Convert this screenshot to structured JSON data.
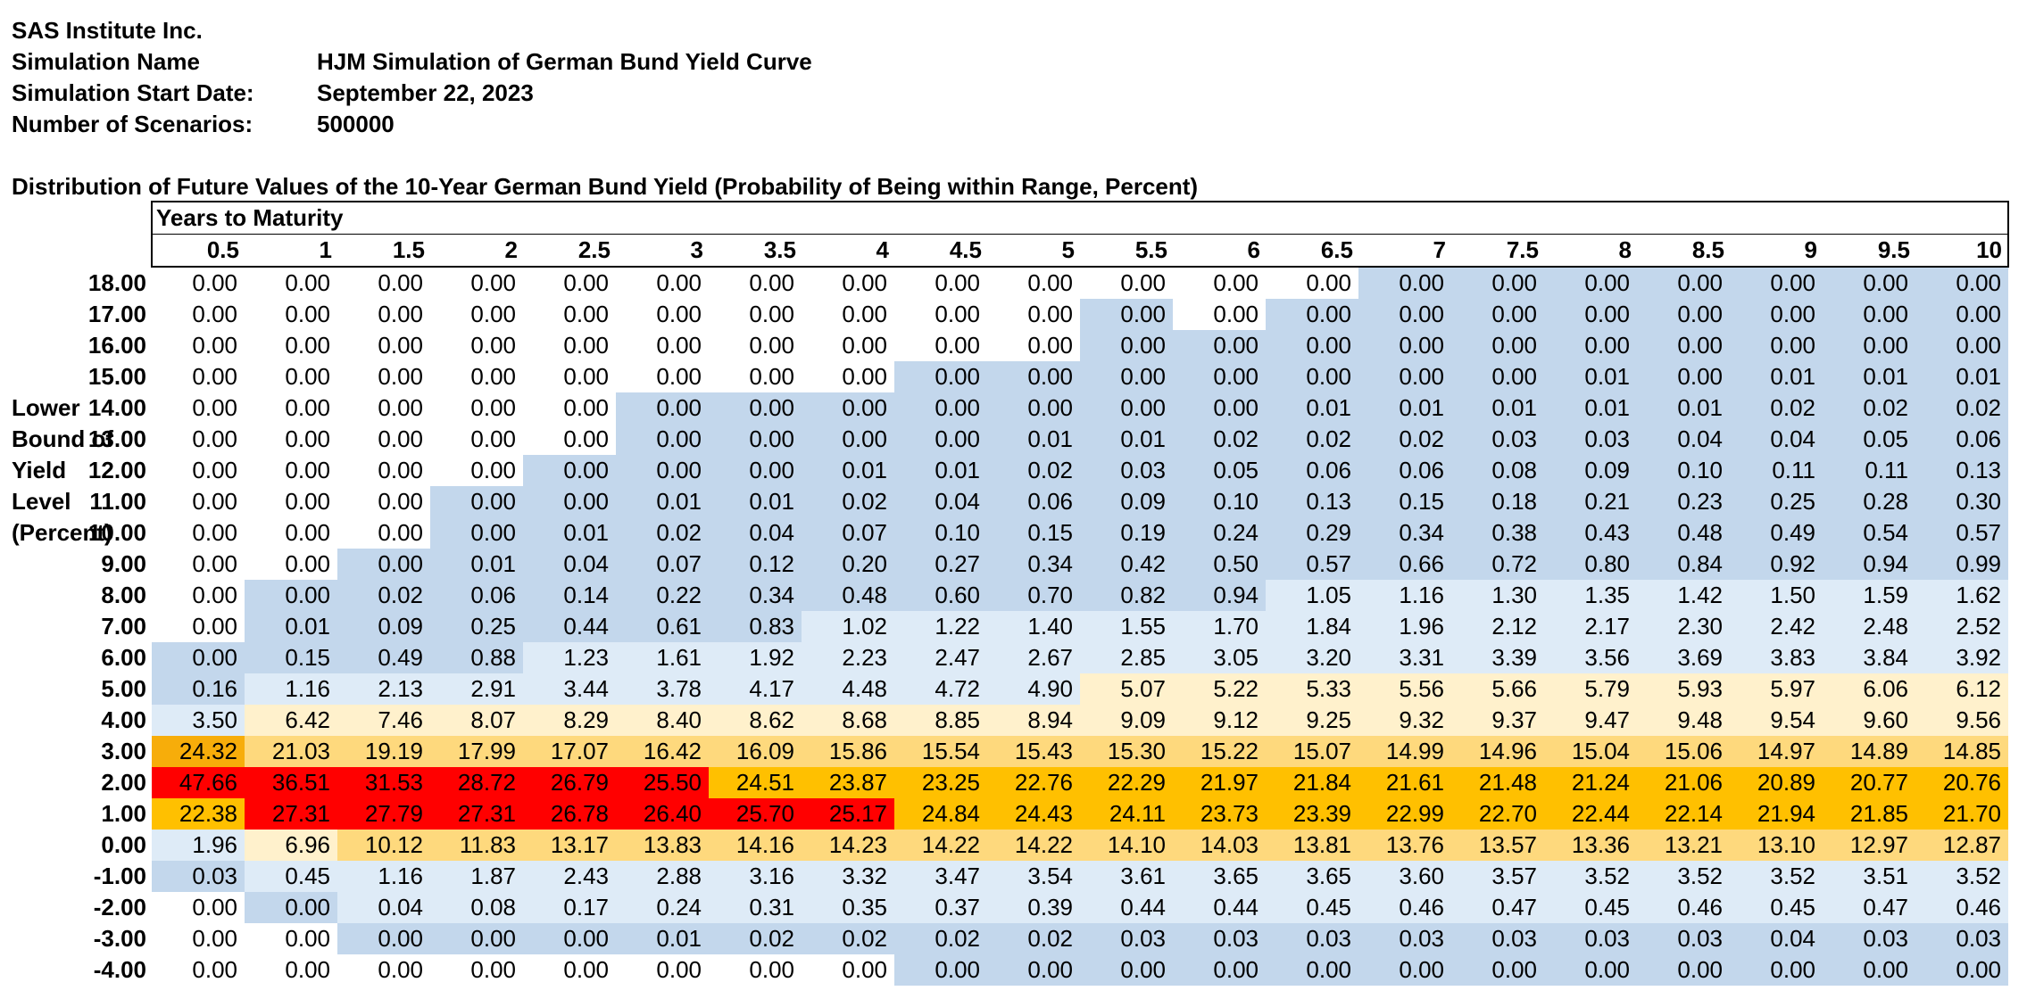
{
  "header": {
    "company": "SAS Institute Inc.",
    "simulation_name_label": "Simulation Name",
    "simulation_name": "HJM Simulation of German Bund Yield Curve",
    "start_date_label": "Simulation Start Date:",
    "start_date": "September 22, 2023",
    "scenarios_label": "Number of Scenarios:",
    "scenarios": "500000"
  },
  "caption": "Distribution of Future Values of the 10-Year German Bund Yield (Probability of Being within Range, Percent)",
  "side_label": [
    "Lower",
    "Bound of",
    "Yield",
    "Level",
    "(Percent)"
  ],
  "table": {
    "years_label": "Years to Maturity",
    "columns": [
      "0.5",
      "1",
      "1.5",
      "2",
      "2.5",
      "3",
      "3.5",
      "4",
      "4.5",
      "5",
      "5.5",
      "6",
      "6.5",
      "7",
      "7.5",
      "8",
      "8.5",
      "9",
      "9.5",
      "10"
    ],
    "rows": [
      {
        "label": "18.00",
        "values": [
          "0.00",
          "0.00",
          "0.00",
          "0.00",
          "0.00",
          "0.00",
          "0.00",
          "0.00",
          "0.00",
          "0.00",
          "0.00",
          "0.00",
          "0.00",
          "0.00",
          "0.00",
          "0.00",
          "0.00",
          "0.00",
          "0.00",
          "0.00"
        ]
      },
      {
        "label": "17.00",
        "values": [
          "0.00",
          "0.00",
          "0.00",
          "0.00",
          "0.00",
          "0.00",
          "0.00",
          "0.00",
          "0.00",
          "0.00",
          "0.00",
          "0.00",
          "0.00",
          "0.00",
          "0.00",
          "0.00",
          "0.00",
          "0.00",
          "0.00",
          "0.00"
        ]
      },
      {
        "label": "16.00",
        "values": [
          "0.00",
          "0.00",
          "0.00",
          "0.00",
          "0.00",
          "0.00",
          "0.00",
          "0.00",
          "0.00",
          "0.00",
          "0.00",
          "0.00",
          "0.00",
          "0.00",
          "0.00",
          "0.00",
          "0.00",
          "0.00",
          "0.00",
          "0.00"
        ]
      },
      {
        "label": "15.00",
        "values": [
          "0.00",
          "0.00",
          "0.00",
          "0.00",
          "0.00",
          "0.00",
          "0.00",
          "0.00",
          "0.00",
          "0.00",
          "0.00",
          "0.00",
          "0.00",
          "0.00",
          "0.00",
          "0.01",
          "0.00",
          "0.01",
          "0.01",
          "0.01"
        ]
      },
      {
        "label": "14.00",
        "values": [
          "0.00",
          "0.00",
          "0.00",
          "0.00",
          "0.00",
          "0.00",
          "0.00",
          "0.00",
          "0.00",
          "0.00",
          "0.00",
          "0.00",
          "0.01",
          "0.01",
          "0.01",
          "0.01",
          "0.01",
          "0.02",
          "0.02",
          "0.02"
        ]
      },
      {
        "label": "13.00",
        "values": [
          "0.00",
          "0.00",
          "0.00",
          "0.00",
          "0.00",
          "0.00",
          "0.00",
          "0.00",
          "0.00",
          "0.01",
          "0.01",
          "0.02",
          "0.02",
          "0.02",
          "0.03",
          "0.03",
          "0.04",
          "0.04",
          "0.05",
          "0.06"
        ]
      },
      {
        "label": "12.00",
        "values": [
          "0.00",
          "0.00",
          "0.00",
          "0.00",
          "0.00",
          "0.00",
          "0.00",
          "0.01",
          "0.01",
          "0.02",
          "0.03",
          "0.05",
          "0.06",
          "0.06",
          "0.08",
          "0.09",
          "0.10",
          "0.11",
          "0.11",
          "0.13"
        ]
      },
      {
        "label": "11.00",
        "values": [
          "0.00",
          "0.00",
          "0.00",
          "0.00",
          "0.00",
          "0.01",
          "0.01",
          "0.02",
          "0.04",
          "0.06",
          "0.09",
          "0.10",
          "0.13",
          "0.15",
          "0.18",
          "0.21",
          "0.23",
          "0.25",
          "0.28",
          "0.30"
        ]
      },
      {
        "label": "10.00",
        "values": [
          "0.00",
          "0.00",
          "0.00",
          "0.00",
          "0.01",
          "0.02",
          "0.04",
          "0.07",
          "0.10",
          "0.15",
          "0.19",
          "0.24",
          "0.29",
          "0.34",
          "0.38",
          "0.43",
          "0.48",
          "0.49",
          "0.54",
          "0.57"
        ]
      },
      {
        "label": "9.00",
        "values": [
          "0.00",
          "0.00",
          "0.00",
          "0.01",
          "0.04",
          "0.07",
          "0.12",
          "0.20",
          "0.27",
          "0.34",
          "0.42",
          "0.50",
          "0.57",
          "0.66",
          "0.72",
          "0.80",
          "0.84",
          "0.92",
          "0.94",
          "0.99"
        ]
      },
      {
        "label": "8.00",
        "values": [
          "0.00",
          "0.00",
          "0.02",
          "0.06",
          "0.14",
          "0.22",
          "0.34",
          "0.48",
          "0.60",
          "0.70",
          "0.82",
          "0.94",
          "1.05",
          "1.16",
          "1.30",
          "1.35",
          "1.42",
          "1.50",
          "1.59",
          "1.62"
        ]
      },
      {
        "label": "7.00",
        "values": [
          "0.00",
          "0.01",
          "0.09",
          "0.25",
          "0.44",
          "0.61",
          "0.83",
          "1.02",
          "1.22",
          "1.40",
          "1.55",
          "1.70",
          "1.84",
          "1.96",
          "2.12",
          "2.17",
          "2.30",
          "2.42",
          "2.48",
          "2.52"
        ]
      },
      {
        "label": "6.00",
        "values": [
          "0.00",
          "0.15",
          "0.49",
          "0.88",
          "1.23",
          "1.61",
          "1.92",
          "2.23",
          "2.47",
          "2.67",
          "2.85",
          "3.05",
          "3.20",
          "3.31",
          "3.39",
          "3.56",
          "3.69",
          "3.83",
          "3.84",
          "3.92"
        ]
      },
      {
        "label": "5.00",
        "values": [
          "0.16",
          "1.16",
          "2.13",
          "2.91",
          "3.44",
          "3.78",
          "4.17",
          "4.48",
          "4.72",
          "4.90",
          "5.07",
          "5.22",
          "5.33",
          "5.56",
          "5.66",
          "5.79",
          "5.93",
          "5.97",
          "6.06",
          "6.12"
        ]
      },
      {
        "label": "4.00",
        "values": [
          "3.50",
          "6.42",
          "7.46",
          "8.07",
          "8.29",
          "8.40",
          "8.62",
          "8.68",
          "8.85",
          "8.94",
          "9.09",
          "9.12",
          "9.25",
          "9.32",
          "9.37",
          "9.47",
          "9.48",
          "9.54",
          "9.60",
          "9.56"
        ]
      },
      {
        "label": "3.00",
        "values": [
          "24.32",
          "21.03",
          "19.19",
          "17.99",
          "17.07",
          "16.42",
          "16.09",
          "15.86",
          "15.54",
          "15.43",
          "15.30",
          "15.22",
          "15.07",
          "14.99",
          "14.96",
          "15.04",
          "15.06",
          "14.97",
          "14.89",
          "14.85"
        ]
      },
      {
        "label": "2.00",
        "values": [
          "47.66",
          "36.51",
          "31.53",
          "28.72",
          "26.79",
          "25.50",
          "24.51",
          "23.87",
          "23.25",
          "22.76",
          "22.29",
          "21.97",
          "21.84",
          "21.61",
          "21.48",
          "21.24",
          "21.06",
          "20.89",
          "20.77",
          "20.76"
        ]
      },
      {
        "label": "1.00",
        "values": [
          "22.38",
          "27.31",
          "27.79",
          "27.31",
          "26.78",
          "26.40",
          "25.70",
          "25.17",
          "24.84",
          "24.43",
          "24.11",
          "23.73",
          "23.39",
          "22.99",
          "22.70",
          "22.44",
          "22.14",
          "21.94",
          "21.85",
          "21.70"
        ]
      },
      {
        "label": "0.00",
        "values": [
          "1.96",
          "6.96",
          "10.12",
          "11.83",
          "13.17",
          "13.83",
          "14.16",
          "14.23",
          "14.22",
          "14.22",
          "14.10",
          "14.03",
          "13.81",
          "13.76",
          "13.57",
          "13.36",
          "13.21",
          "13.10",
          "12.97",
          "12.87"
        ]
      },
      {
        "label": "-1.00",
        "values": [
          "0.03",
          "0.45",
          "1.16",
          "1.87",
          "2.43",
          "2.88",
          "3.16",
          "3.32",
          "3.47",
          "3.54",
          "3.61",
          "3.65",
          "3.65",
          "3.60",
          "3.57",
          "3.52",
          "3.52",
          "3.52",
          "3.51",
          "3.52"
        ]
      },
      {
        "label": "-2.00",
        "values": [
          "0.00",
          "0.00",
          "0.04",
          "0.08",
          "0.17",
          "0.24",
          "0.31",
          "0.35",
          "0.37",
          "0.39",
          "0.44",
          "0.44",
          "0.45",
          "0.46",
          "0.47",
          "0.45",
          "0.46",
          "0.45",
          "0.47",
          "0.46"
        ]
      },
      {
        "label": "-3.00",
        "values": [
          "0.00",
          "0.00",
          "0.00",
          "0.00",
          "0.00",
          "0.01",
          "0.02",
          "0.02",
          "0.02",
          "0.02",
          "0.03",
          "0.03",
          "0.03",
          "0.03",
          "0.03",
          "0.03",
          "0.03",
          "0.04",
          "0.03",
          "0.03"
        ]
      },
      {
        "label": "-4.00",
        "values": [
          "0.00",
          "0.00",
          "0.00",
          "0.00",
          "0.00",
          "0.00",
          "0.00",
          "0.00",
          "0.00",
          "0.00",
          "0.00",
          "0.00",
          "0.00",
          "0.00",
          "0.00",
          "0.00",
          "0.00",
          "0.00",
          "0.00",
          "0.00"
        ]
      }
    ],
    "fills": [
      [
        "w",
        "w",
        "w",
        "w",
        "w",
        "w",
        "w",
        "w",
        "w",
        "w",
        "w",
        "w",
        "w",
        "b",
        "b",
        "b",
        "b",
        "b",
        "b",
        "b"
      ],
      [
        "w",
        "w",
        "w",
        "w",
        "w",
        "w",
        "w",
        "w",
        "w",
        "w",
        "b",
        "w",
        "b",
        "b",
        "b",
        "b",
        "b",
        "b",
        "b",
        "b"
      ],
      [
        "w",
        "w",
        "w",
        "w",
        "w",
        "w",
        "w",
        "w",
        "w",
        "w",
        "b",
        "b",
        "b",
        "b",
        "b",
        "b",
        "b",
        "b",
        "b",
        "b"
      ],
      [
        "w",
        "w",
        "w",
        "w",
        "w",
        "w",
        "w",
        "w",
        "b",
        "b",
        "b",
        "b",
        "b",
        "b",
        "b",
        "b",
        "b",
        "b",
        "b",
        "b"
      ],
      [
        "w",
        "w",
        "w",
        "w",
        "w",
        "b",
        "b",
        "b",
        "b",
        "b",
        "b",
        "b",
        "b",
        "b",
        "b",
        "b",
        "b",
        "b",
        "b",
        "b"
      ],
      [
        "w",
        "w",
        "w",
        "w",
        "w",
        "b",
        "b",
        "b",
        "b",
        "b",
        "b",
        "b",
        "b",
        "b",
        "b",
        "b",
        "b",
        "b",
        "b",
        "b"
      ],
      [
        "w",
        "w",
        "w",
        "w",
        "b",
        "b",
        "b",
        "b",
        "b",
        "b",
        "b",
        "b",
        "b",
        "b",
        "b",
        "b",
        "b",
        "b",
        "b",
        "b"
      ],
      [
        "w",
        "w",
        "w",
        "b",
        "b",
        "b",
        "b",
        "b",
        "b",
        "b",
        "b",
        "b",
        "b",
        "b",
        "b",
        "b",
        "b",
        "b",
        "b",
        "b"
      ],
      [
        "w",
        "w",
        "w",
        "b",
        "b",
        "b",
        "b",
        "b",
        "b",
        "b",
        "b",
        "b",
        "b",
        "b",
        "b",
        "b",
        "b",
        "b",
        "b",
        "b"
      ],
      [
        "w",
        "w",
        "b",
        "b",
        "b",
        "b",
        "b",
        "b",
        "b",
        "b",
        "b",
        "b",
        "b",
        "b",
        "b",
        "b",
        "b",
        "b",
        "b",
        "b"
      ],
      [
        "w",
        "b",
        "b",
        "b",
        "b",
        "b",
        "b",
        "b",
        "b",
        "b",
        "b",
        "b",
        "lb",
        "lb",
        "lb",
        "lb",
        "lb",
        "lb",
        "lb",
        "lb"
      ],
      [
        "w",
        "b",
        "b",
        "b",
        "b",
        "b",
        "b",
        "lb",
        "lb",
        "lb",
        "lb",
        "lb",
        "lb",
        "lb",
        "lb",
        "lb",
        "lb",
        "lb",
        "lb",
        "lb"
      ],
      [
        "b",
        "b",
        "b",
        "b",
        "lb",
        "lb",
        "lb",
        "lb",
        "lb",
        "lb",
        "lb",
        "lb",
        "lb",
        "lb",
        "lb",
        "lb",
        "lb",
        "lb",
        "lb",
        "lb"
      ],
      [
        "b",
        "lb",
        "lb",
        "lb",
        "lb",
        "lb",
        "lb",
        "lb",
        "lb",
        "lb",
        "cr",
        "cr",
        "cr",
        "cr",
        "cr",
        "cr",
        "cr",
        "cr",
        "cr",
        "cr"
      ],
      [
        "lb",
        "cr",
        "cr",
        "cr",
        "cr",
        "cr",
        "cr",
        "cr",
        "cr",
        "cr",
        "cr",
        "cr",
        "cr",
        "cr",
        "cr",
        "cr",
        "cr",
        "cr",
        "cr",
        "cr"
      ],
      [
        "or",
        "ly",
        "ly",
        "ly",
        "ly",
        "ly",
        "ly",
        "ly",
        "ly",
        "ly",
        "ly",
        "ly",
        "ly",
        "ly",
        "ly",
        "ly",
        "ly",
        "ly",
        "ly",
        "ly"
      ],
      [
        "rd",
        "rd",
        "rd",
        "rd",
        "rd",
        "rd",
        "yo",
        "yo",
        "yo",
        "yo",
        "yo",
        "yo",
        "yo",
        "yo",
        "yo",
        "yo",
        "yo",
        "yo",
        "yo",
        "yo"
      ],
      [
        "yo",
        "rd",
        "rd",
        "rd",
        "rd",
        "rd",
        "rd",
        "rd",
        "yo",
        "yo",
        "yo",
        "yo",
        "yo",
        "yo",
        "yo",
        "yo",
        "yo",
        "yo",
        "yo",
        "yo"
      ],
      [
        "lb",
        "cr",
        "ly",
        "ly",
        "ly",
        "ly",
        "ly",
        "ly",
        "ly",
        "ly",
        "ly",
        "ly",
        "ly",
        "ly",
        "ly",
        "ly",
        "ly",
        "ly",
        "ly",
        "ly"
      ],
      [
        "b",
        "lb",
        "lb",
        "lb",
        "lb",
        "lb",
        "lb",
        "lb",
        "lb",
        "lb",
        "lb",
        "lb",
        "lb",
        "lb",
        "lb",
        "lb",
        "lb",
        "lb",
        "lb",
        "lb"
      ],
      [
        "w",
        "b",
        "lb",
        "lb",
        "lb",
        "lb",
        "lb",
        "lb",
        "lb",
        "lb",
        "lb",
        "lb",
        "lb",
        "lb",
        "lb",
        "lb",
        "lb",
        "lb",
        "lb",
        "lb"
      ],
      [
        "w",
        "w",
        "b",
        "b",
        "b",
        "b",
        "b",
        "b",
        "b",
        "b",
        "b",
        "b",
        "b",
        "b",
        "b",
        "b",
        "b",
        "b",
        "b",
        "b"
      ],
      [
        "w",
        "w",
        "w",
        "w",
        "w",
        "w",
        "w",
        "w",
        "b",
        "b",
        "b",
        "b",
        "b",
        "b",
        "b",
        "b",
        "b",
        "b",
        "b",
        "b"
      ]
    ]
  }
}
